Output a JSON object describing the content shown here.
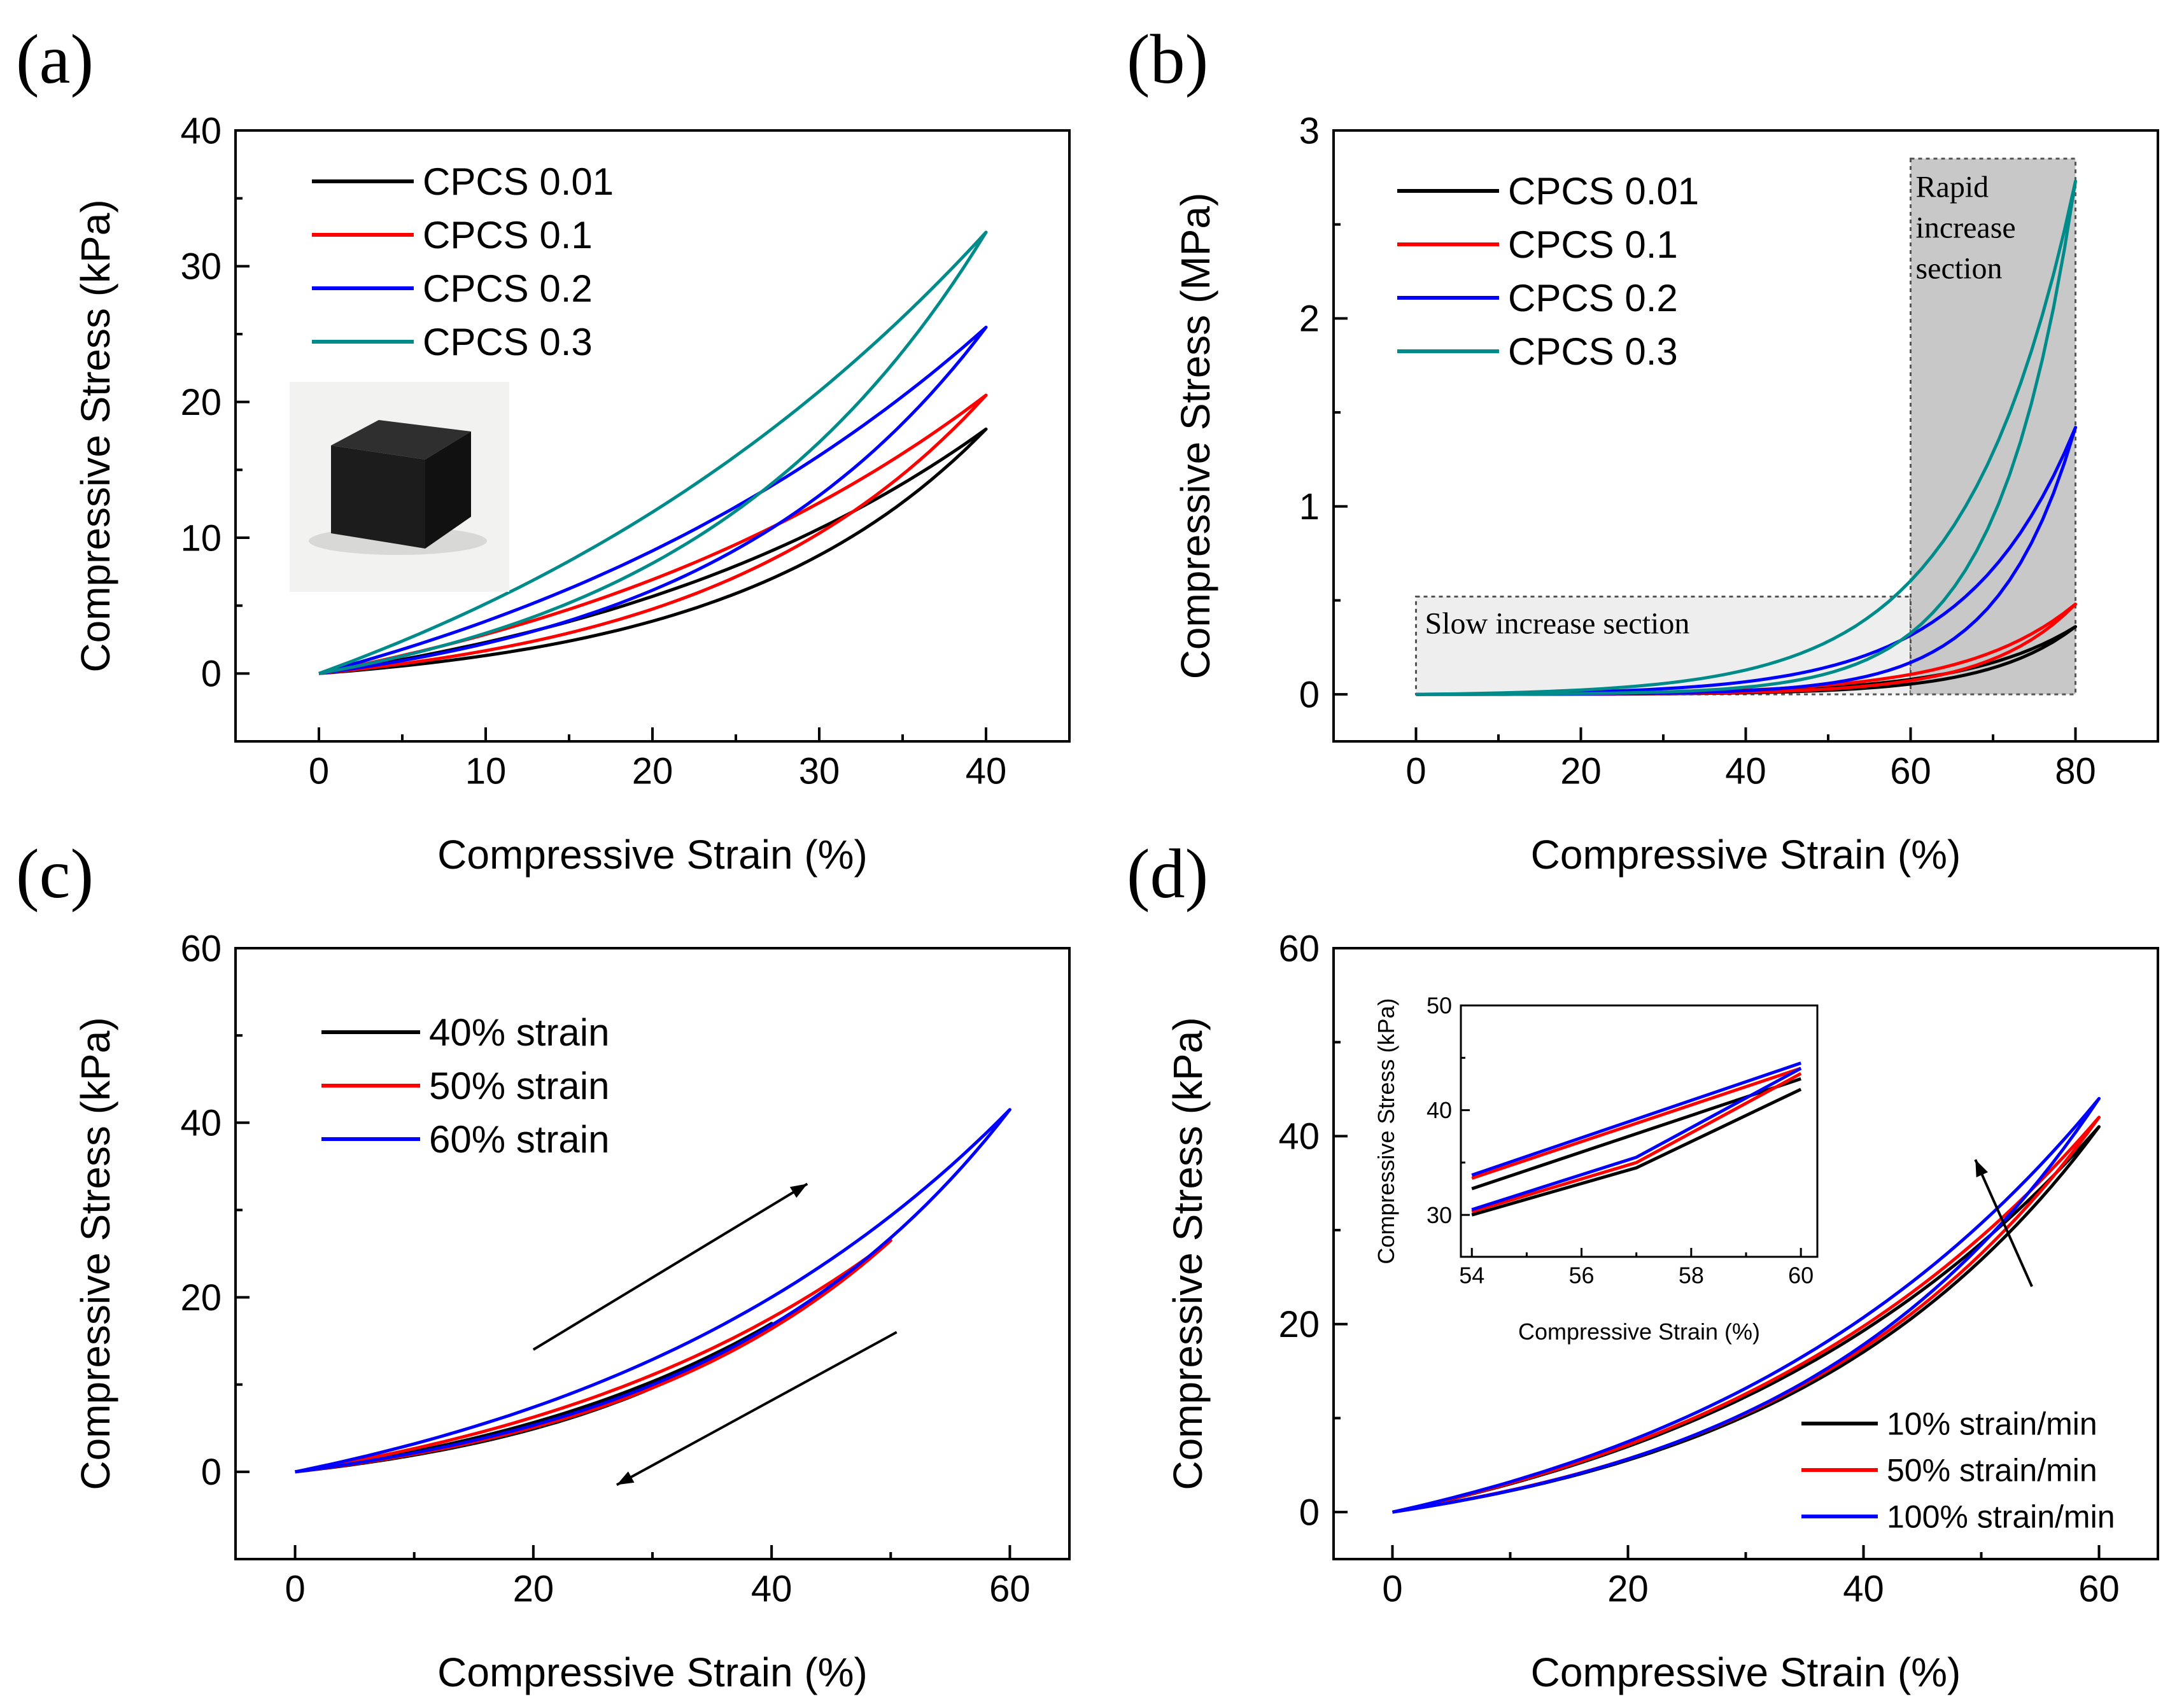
{
  "chart_data": [
    {
      "panel_label": "(a)",
      "type": "line",
      "xlabel": "Compressive Strain (%)",
      "ylabel": "Compressive Stress (kPa)",
      "xlim": [
        -5,
        45
      ],
      "ylim": [
        -5,
        40
      ],
      "xticks": [
        0,
        10,
        20,
        30,
        40
      ],
      "yticks": [
        0,
        10,
        20,
        30,
        40
      ],
      "grid": false,
      "legend": "top-left",
      "inset_image": "black-foam-cube-photo",
      "series": [
        {
          "name": "CPCS 0.01",
          "color": "#000000",
          "peak_x": 40,
          "peak_y": 18,
          "load_k": 1.55,
          "unload_k": 2.6
        },
        {
          "name": "CPCS 0.1",
          "color": "#ff0000",
          "peak_x": 40,
          "peak_y": 20.5,
          "load_k": 1.35,
          "unload_k": 2.4
        },
        {
          "name": "CPCS 0.2",
          "color": "#0000ff",
          "peak_x": 40,
          "peak_y": 25.5,
          "load_k": 1.2,
          "unload_k": 2.3
        },
        {
          "name": "CPCS 0.3",
          "color": "#008b8b",
          "peak_x": 40,
          "peak_y": 32.5,
          "load_k": 1.1,
          "unload_k": 2.2
        }
      ]
    },
    {
      "panel_label": "(b)",
      "type": "line",
      "xlabel": "Compressive Strain (%)",
      "ylabel": "Compressive Stress (MPa)",
      "xlim": [
        -10,
        90
      ],
      "ylim": [
        -0.25,
        3
      ],
      "xticks": [
        0,
        20,
        40,
        60,
        80
      ],
      "yticks": [
        0,
        1,
        2,
        3
      ],
      "grid": false,
      "legend": "top-left",
      "annotations": [
        {
          "text": "Slow increase section",
          "x_range": [
            0,
            60
          ],
          "y_range": [
            0,
            0.52
          ]
        },
        {
          "text_lines": [
            "Rapid",
            "increase",
            "section"
          ],
          "x_range": [
            60,
            80
          ],
          "y_range": [
            0,
            2.85
          ]
        }
      ],
      "series": [
        {
          "name": "CPCS 0.01",
          "color": "#000000",
          "peak_x": 80,
          "peak_y": 0.36,
          "load_k": 6.0,
          "unload_k": 7.5
        },
        {
          "name": "CPCS 0.1",
          "color": "#ff0000",
          "peak_x": 80,
          "peak_y": 0.48,
          "load_k": 6.0,
          "unload_k": 7.5
        },
        {
          "name": "CPCS 0.2",
          "color": "#0000ff",
          "peak_x": 80,
          "peak_y": 1.42,
          "load_k": 6.0,
          "unload_k": 8.5
        },
        {
          "name": "CPCS 0.3",
          "color": "#008b8b",
          "peak_x": 80,
          "peak_y": 2.73,
          "load_k": 6.0,
          "unload_k": 8.5
        }
      ]
    },
    {
      "panel_label": "(c)",
      "type": "line",
      "xlabel": "Compressive Strain (%)",
      "ylabel": "Compressive Stress (kPa)",
      "xlim": [
        -5,
        65
      ],
      "ylim": [
        -10,
        60
      ],
      "xticks": [
        0,
        20,
        40,
        60
      ],
      "yticks": [
        0,
        20,
        40,
        60
      ],
      "grid": false,
      "legend": "top-left",
      "arrows": [
        {
          "direction": "loading",
          "from": [
            20,
            14
          ],
          "to": [
            43,
            33
          ]
        },
        {
          "direction": "unloading",
          "from": [
            50.5,
            16
          ],
          "to": [
            27,
            -1.5
          ]
        }
      ],
      "series": [
        {
          "name": "40% strain",
          "color": "#000000",
          "peak_x": 40,
          "peak_y": 17,
          "load_k": 1.4,
          "unload_k": 1.8
        },
        {
          "name": "50% strain",
          "color": "#ff0000",
          "peak_x": 50,
          "peak_y": 26.5,
          "load_k": 1.5,
          "unload_k": 2.0
        },
        {
          "name": "60% strain",
          "color": "#0000ff",
          "peak_x": 60,
          "peak_y": 41.5,
          "load_k": 1.6,
          "unload_k": 2.3
        }
      ]
    },
    {
      "panel_label": "(d)",
      "type": "line",
      "xlabel": "Compressive Strain (%)",
      "ylabel": "Compressive Stress (kPa)",
      "xlim": [
        -5,
        65
      ],
      "ylim": [
        -5,
        60
      ],
      "xticks": [
        0,
        20,
        40,
        60
      ],
      "yticks": [
        0,
        20,
        40,
        60
      ],
      "grid": false,
      "legend": "bottom-right",
      "arrows": [
        {
          "direction": "increasing rate",
          "from": [
            54.3,
            24
          ],
          "to": [
            49.5,
            37.5
          ]
        }
      ],
      "series": [
        {
          "name": "10% strain/min",
          "color": "#000000",
          "peak_x": 60,
          "peak_y": 41,
          "load_k": 1.7,
          "unload_k": 2.2
        },
        {
          "name": "50% strain/min",
          "color": "#ff0000",
          "peak_x": 60,
          "peak_y": 42,
          "load_k": 1.7,
          "unload_k": 2.2
        },
        {
          "name": "100% strain/min",
          "color": "#0000ff",
          "peak_x": 60,
          "peak_y": 44,
          "load_k": 1.7,
          "unload_k": 2.3
        }
      ],
      "inset": {
        "xlabel": "Compressive Strain (%)",
        "ylabel": "Compressive Stress (kPa)",
        "xlim": [
          53.8,
          60.3
        ],
        "ylim": [
          26,
          50
        ],
        "xticks": [
          54,
          56,
          58,
          60
        ],
        "yticks": [
          30,
          40,
          50
        ],
        "series": [
          {
            "name": "10% strain/min",
            "color": "#000000",
            "unload": [
              [
                54,
                32.5
              ],
              [
                60,
                43
              ]
            ],
            "load": [
              [
                54,
                30
              ],
              [
                57,
                34.5
              ],
              [
                60,
                42
              ]
            ]
          },
          {
            "name": "50% strain/min",
            "color": "#ff0000",
            "unload": [
              [
                54,
                33.5
              ],
              [
                60,
                44
              ]
            ],
            "load": [
              [
                54,
                30.3
              ],
              [
                57,
                35
              ],
              [
                60,
                43.5
              ]
            ]
          },
          {
            "name": "100% strain/min",
            "color": "#0000ff",
            "unload": [
              [
                54,
                33.8
              ],
              [
                60,
                44.5
              ]
            ],
            "load": [
              [
                54,
                30.5
              ],
              [
                57,
                35.5
              ],
              [
                60,
                44
              ]
            ]
          }
        ]
      }
    }
  ]
}
